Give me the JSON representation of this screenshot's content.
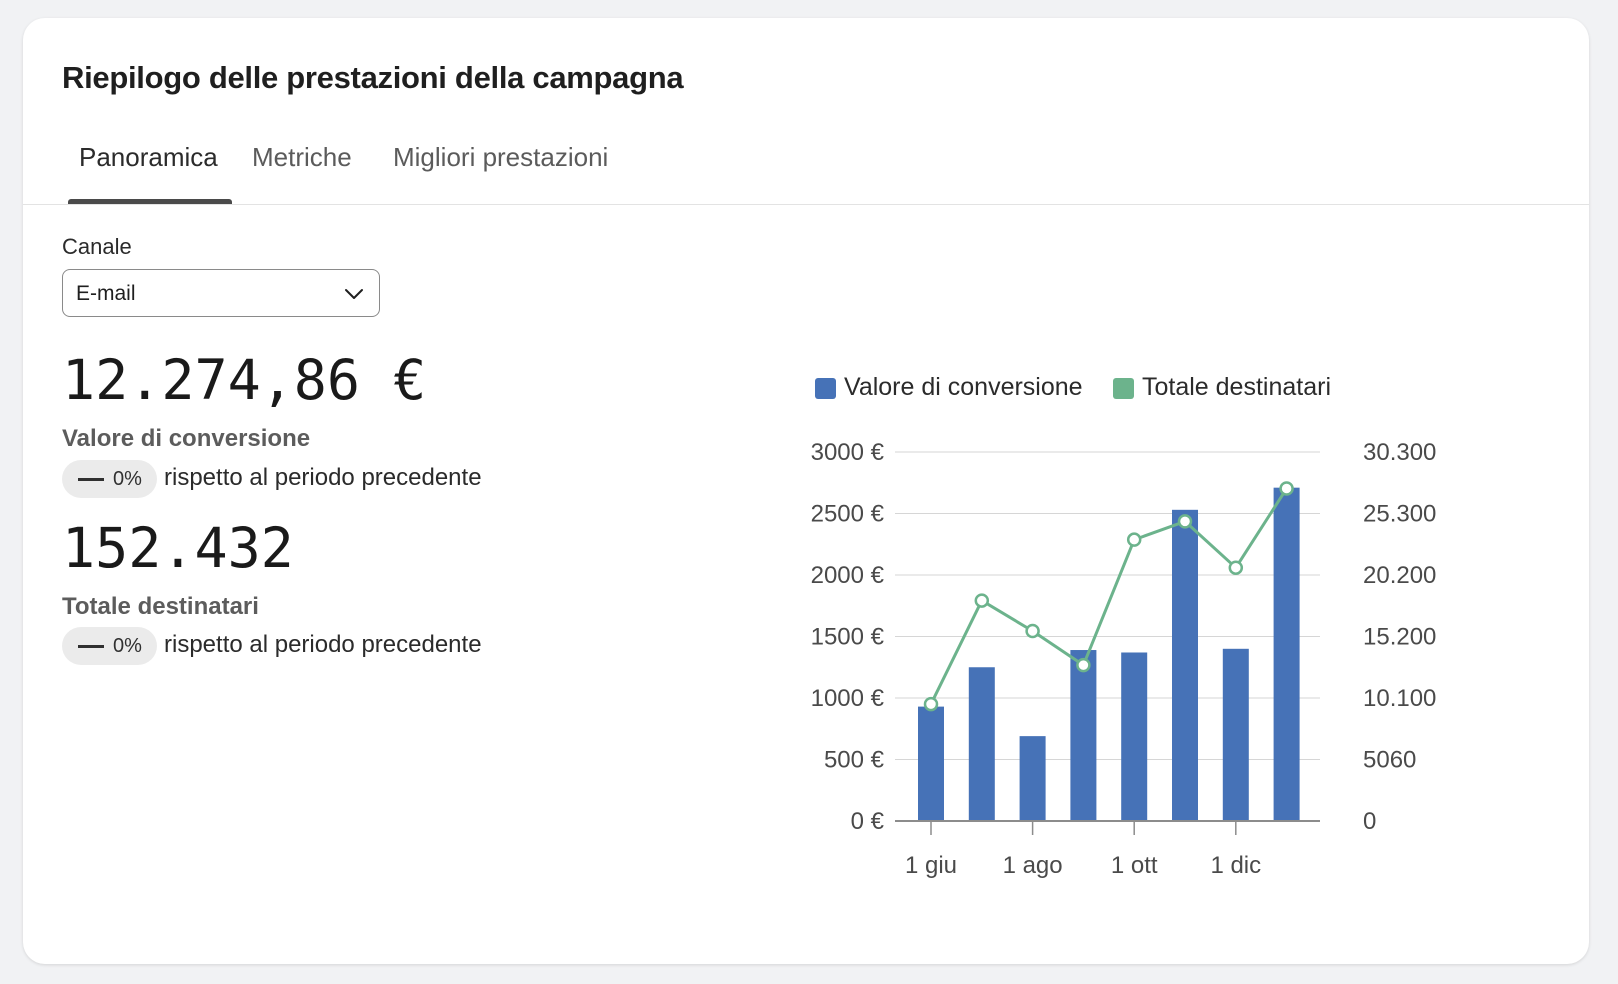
{
  "header": {
    "title": "Riepilogo delle prestazioni della campagna"
  },
  "tabs": [
    {
      "label": "Panoramica",
      "active": true
    },
    {
      "label": "Metriche",
      "active": false
    },
    {
      "label": "Migliori prestazioni",
      "active": false
    }
  ],
  "filter": {
    "label": "Canale",
    "selected": "E-mail",
    "icon": "chevron-down-icon"
  },
  "metrics": [
    {
      "value": "12.274,86 €",
      "label": "Valore di conversione",
      "delta": "0%",
      "delta_icon": "dash-icon",
      "comparison": "rispetto al periodo precedente"
    },
    {
      "value": "152.432",
      "label": "Totale destinatari",
      "delta": "0%",
      "delta_icon": "dash-icon",
      "comparison": "rispetto al periodo precedente"
    }
  ],
  "colors": {
    "bar": "#4672b7",
    "line": "#6cb38c",
    "accent_tab": "#4a4a4a"
  },
  "chart_data": {
    "type": "bar",
    "legend_placement": "top",
    "grid": true,
    "categories": [
      "",
      "",
      "",
      "",
      "",
      "",
      "",
      ""
    ],
    "x_tick_labels": [
      {
        "index": 0,
        "label": "1 giu"
      },
      {
        "index": 2,
        "label": "1 ago"
      },
      {
        "index": 4,
        "label": "1 ott"
      },
      {
        "index": 6,
        "label": "1 dic"
      }
    ],
    "series": [
      {
        "name": "Valore di conversione",
        "type": "bar",
        "axis": "left",
        "color": "#4672b7",
        "values": [
          930,
          1250,
          690,
          1390,
          1370,
          2530,
          1400,
          2710
        ]
      },
      {
        "name": "Totale destinatari",
        "type": "line",
        "axis": "right",
        "color": "#6cb38c",
        "values": [
          9600,
          18100,
          15600,
          12800,
          23100,
          24600,
          20800,
          27300
        ]
      }
    ],
    "y_left": {
      "min": 0,
      "max": 3000,
      "tick_values": [
        0,
        500,
        1000,
        1500,
        2000,
        2500,
        3000
      ],
      "tick_labels": [
        "0 €",
        "500 €",
        "1000 €",
        "1500 €",
        "2000 €",
        "2500 €",
        "3000 €"
      ]
    },
    "y_right": {
      "tick_values": [
        0,
        5060,
        10100,
        15200,
        20200,
        25300,
        30300
      ],
      "tick_labels": [
        "0",
        "5060",
        "10.100",
        "15.200",
        "20.200",
        "25.300",
        "30.300"
      ]
    }
  }
}
